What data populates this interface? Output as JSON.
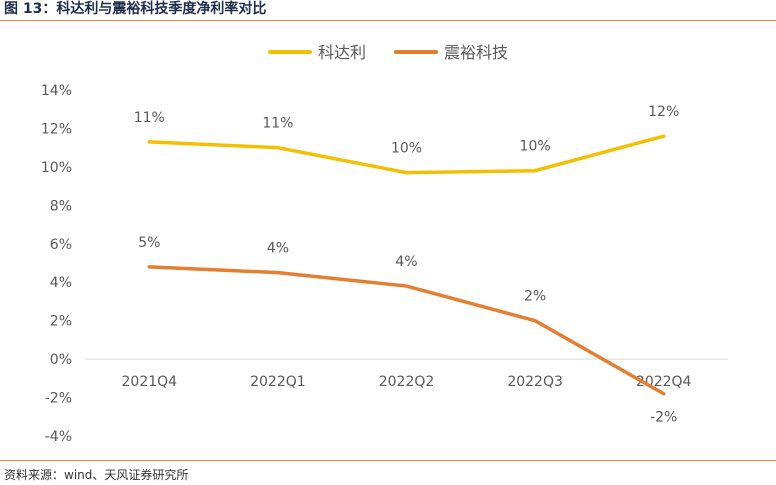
{
  "header": {
    "title": "图 13：科达利与震裕科技季度净利率对比"
  },
  "footer": {
    "source": "资料来源：wind、天风证券研究所"
  },
  "colors": {
    "series_1": "#f2c000",
    "series_2": "#e67e30",
    "rule": "#e38a2c"
  },
  "chart_data": {
    "type": "line",
    "title": "",
    "xlabel": "",
    "ylabel": "",
    "categories": [
      "2021Q4",
      "2022Q1",
      "2022Q2",
      "2022Q3",
      "2022Q4"
    ],
    "ylim": [
      -4,
      14
    ],
    "y_ticks": [
      "14%",
      "12%",
      "10%",
      "8%",
      "6%",
      "4%",
      "2%",
      "0%",
      "-2%",
      "-4%"
    ],
    "grid": false,
    "legend": "top-center",
    "series": [
      {
        "name": "科达利",
        "values": [
          11.3,
          11.0,
          9.7,
          9.8,
          11.6
        ],
        "labels": [
          "11%",
          "11%",
          "10%",
          "10%",
          "12%"
        ]
      },
      {
        "name": "震裕科技",
        "values": [
          4.8,
          4.5,
          3.8,
          2.0,
          -1.8
        ],
        "labels": [
          "5%",
          "4%",
          "4%",
          "2%",
          "-2%"
        ]
      }
    ]
  }
}
